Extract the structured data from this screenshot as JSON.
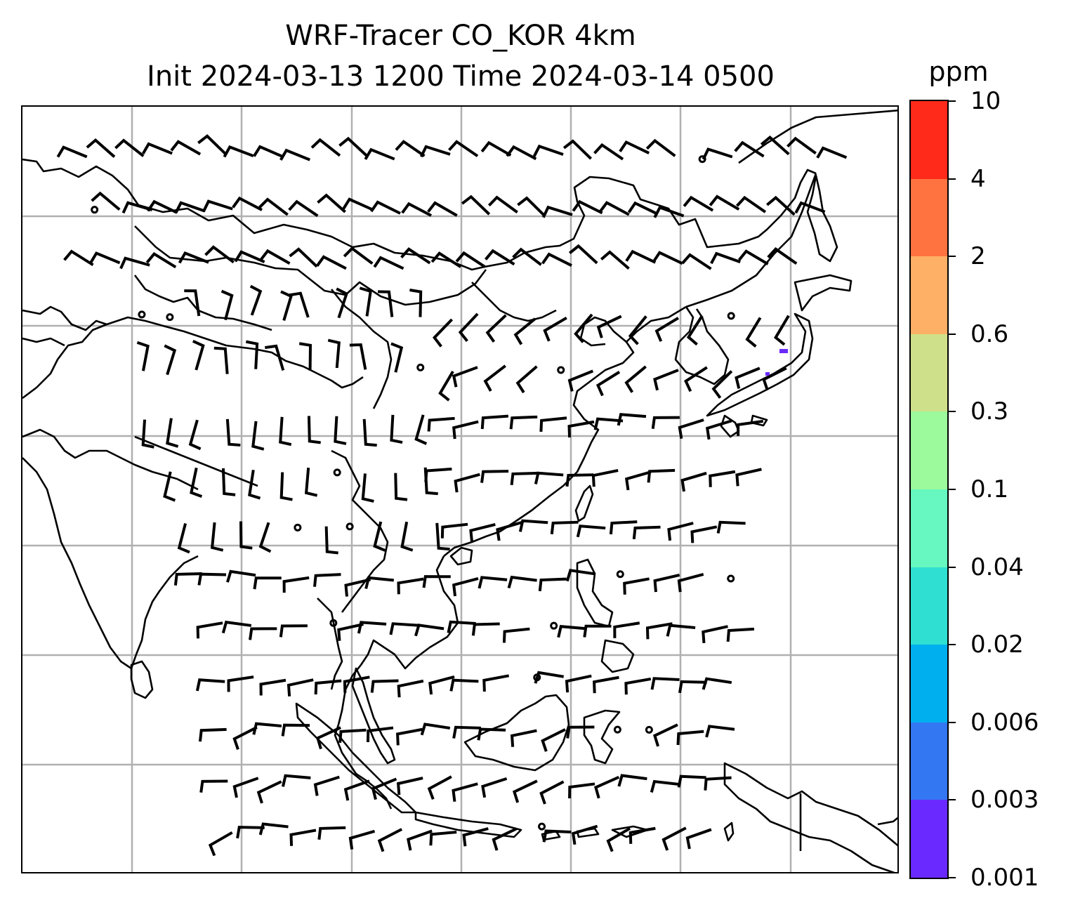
{
  "title": {
    "line1": "WRF-Tracer CO_KOR 4km",
    "line2": "Init 2024-03-13 1200 Time 2024-03-14 0500"
  },
  "colorbar": {
    "unit": "ppm",
    "levels": [
      "0.001",
      "0.003",
      "0.006",
      "0.02",
      "0.04",
      "0.1",
      "0.3",
      "0.6",
      "2",
      "4",
      "10"
    ],
    "colors": [
      "#6a2aff",
      "#3377f2",
      "#00b0ee",
      "#2fe0d2",
      "#66f8c0",
      "#9cf99c",
      "#cfe08a",
      "#fdb066",
      "#ff7340",
      "#ff2a1a"
    ]
  },
  "map": {
    "gridlines": true,
    "tracer_patch_color": "#6a2aff",
    "wind_barb_color": "#000000",
    "coastline_color": "#000000"
  }
}
